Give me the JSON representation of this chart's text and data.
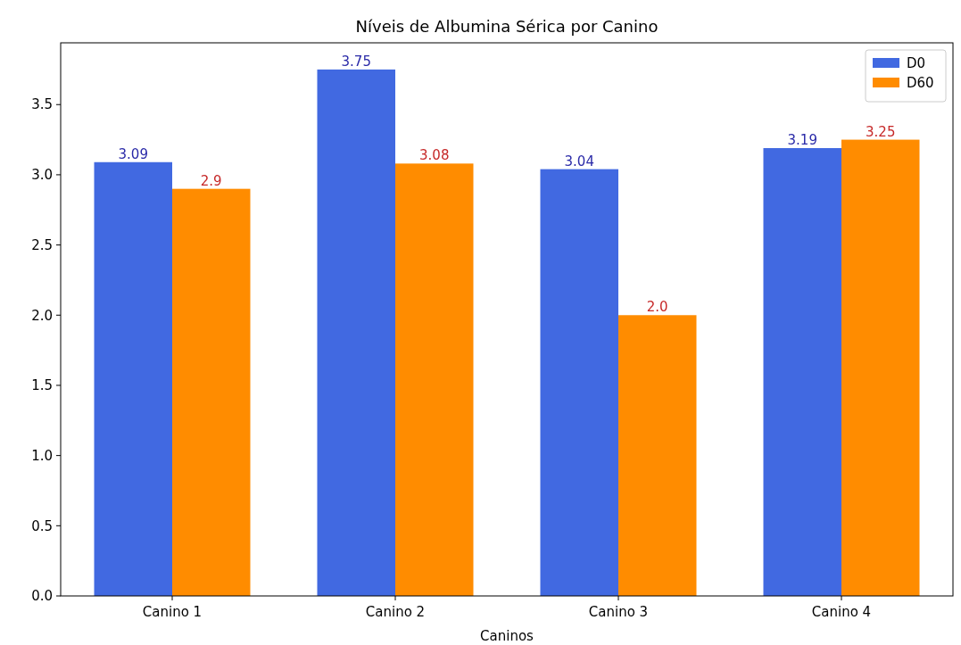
{
  "chart_data": {
    "type": "bar",
    "title": "Níveis de Albumina Sérica por Canino",
    "xlabel": "Caninos",
    "categories": [
      "Canino 1",
      "Canino 2",
      "Canino 3",
      "Canino 4"
    ],
    "series": [
      {
        "name": "D0",
        "color": "#4169e1",
        "values": [
          3.09,
          3.75,
          3.04,
          3.19
        ],
        "value_labels": [
          "3.09",
          "3.75",
          "3.04",
          "3.19"
        ]
      },
      {
        "name": "D60",
        "color": "#ff8c00",
        "values": [
          2.9,
          3.08,
          2.0,
          3.25
        ],
        "value_labels": [
          "2.9",
          "3.08",
          "2.0",
          "3.25"
        ]
      }
    ],
    "ylim": [
      0,
      3.94
    ],
    "yticks": [
      {
        "value": 0,
        "label": "0.0"
      },
      {
        "value": 0.5,
        "label": "0.5"
      },
      {
        "value": 1,
        "label": "1.0"
      },
      {
        "value": 1.5,
        "label": "1.5"
      },
      {
        "value": 2,
        "label": "2.0"
      },
      {
        "value": 2.5,
        "label": "2.5"
      },
      {
        "value": 3,
        "label": "3.0"
      },
      {
        "value": 3.5,
        "label": "3.5"
      }
    ],
    "legend": "top right",
    "grid": false
  }
}
